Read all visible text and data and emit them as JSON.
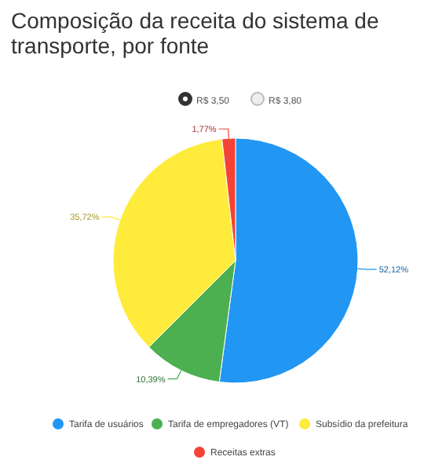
{
  "chart_data": {
    "type": "pie",
    "title": "Composição da receita do sistema de transporte, por fonte",
    "categories": [
      "Tarifa de usuários",
      "Tarifa de empregadores (VT)",
      "Subsídio da prefeitura",
      "Receitas extras"
    ],
    "values": [
      52.12,
      10.39,
      35.72,
      1.77
    ],
    "colors": [
      "#2196f3",
      "#4caf50",
      "#ffeb3b",
      "#f44336"
    ],
    "value_labels": [
      "52,12%",
      "10,39%",
      "35,72%",
      "1,77%"
    ],
    "annotations": [
      "R$ 3,50",
      "R$ 3,80"
    ],
    "legend": "bottom"
  }
}
